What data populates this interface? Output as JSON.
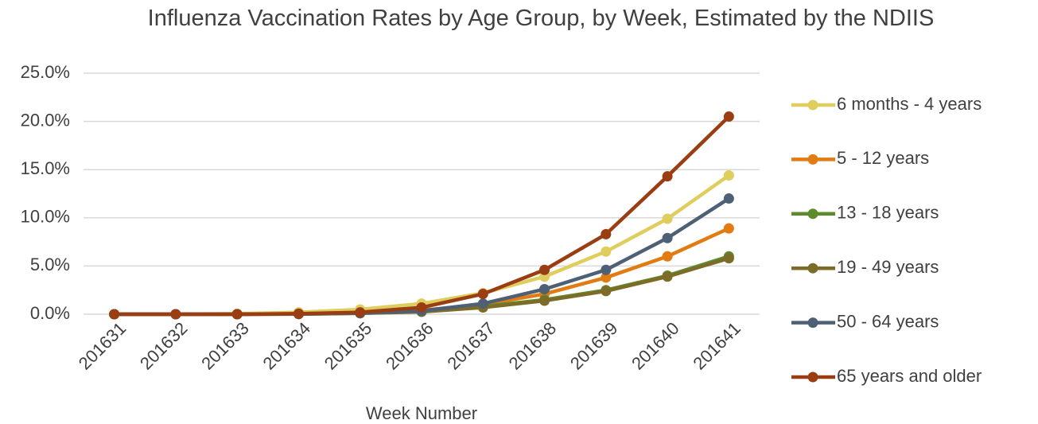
{
  "chart_data": {
    "type": "line",
    "title": "Influenza Vaccination Rates by Age Group, by Week, Estimated by the NDIIS",
    "x_label": "Week Number",
    "categories": [
      "201631",
      "201632",
      "201633",
      "201634",
      "201635",
      "201636",
      "201637",
      "201638",
      "201639",
      "201640",
      "201641"
    ],
    "series": [
      {
        "name": "6 months - 4 years",
        "color": "#dfcd5e",
        "values": [
          0,
          0,
          0.05,
          0.2,
          0.5,
          1.1,
          2.2,
          3.9,
          6.5,
          9.9,
          14.4
        ]
      },
      {
        "name": "5 - 12 years",
        "color": "#e27b12",
        "values": [
          0,
          0,
          0,
          0.05,
          0.15,
          0.4,
          1.0,
          2.1,
          3.8,
          6.0,
          8.9
        ]
      },
      {
        "name": "13 - 18 years",
        "color": "#5b8c2c",
        "values": [
          0,
          0,
          0,
          0.02,
          0.1,
          0.3,
          0.8,
          1.5,
          2.5,
          4.0,
          6.0
        ]
      },
      {
        "name": "19 - 49 years",
        "color": "#7c6c28",
        "values": [
          0,
          0,
          0,
          0.02,
          0.1,
          0.25,
          0.7,
          1.4,
          2.4,
          3.9,
          5.8
        ]
      },
      {
        "name": "50 - 64 years",
        "color": "#4d6075",
        "values": [
          0,
          0,
          0,
          0.03,
          0.12,
          0.35,
          1.1,
          2.6,
          4.6,
          7.9,
          12.0
        ]
      },
      {
        "name": "65 years and older",
        "color": "#9b3d13",
        "values": [
          0,
          0,
          0,
          0.05,
          0.2,
          0.7,
          2.1,
          4.6,
          8.3,
          14.3,
          20.5
        ]
      }
    ],
    "ylim": [
      0,
      25
    ],
    "yticks": [
      {
        "value": 0,
        "label": "0.0%"
      },
      {
        "value": 5,
        "label": "5.0%"
      },
      {
        "value": 10,
        "label": "10.0%"
      },
      {
        "value": 15,
        "label": "15.0%"
      },
      {
        "value": 20,
        "label": "20.0%"
      },
      {
        "value": 25,
        "label": "25.0%"
      }
    ],
    "grid": true,
    "legend": "right"
  }
}
